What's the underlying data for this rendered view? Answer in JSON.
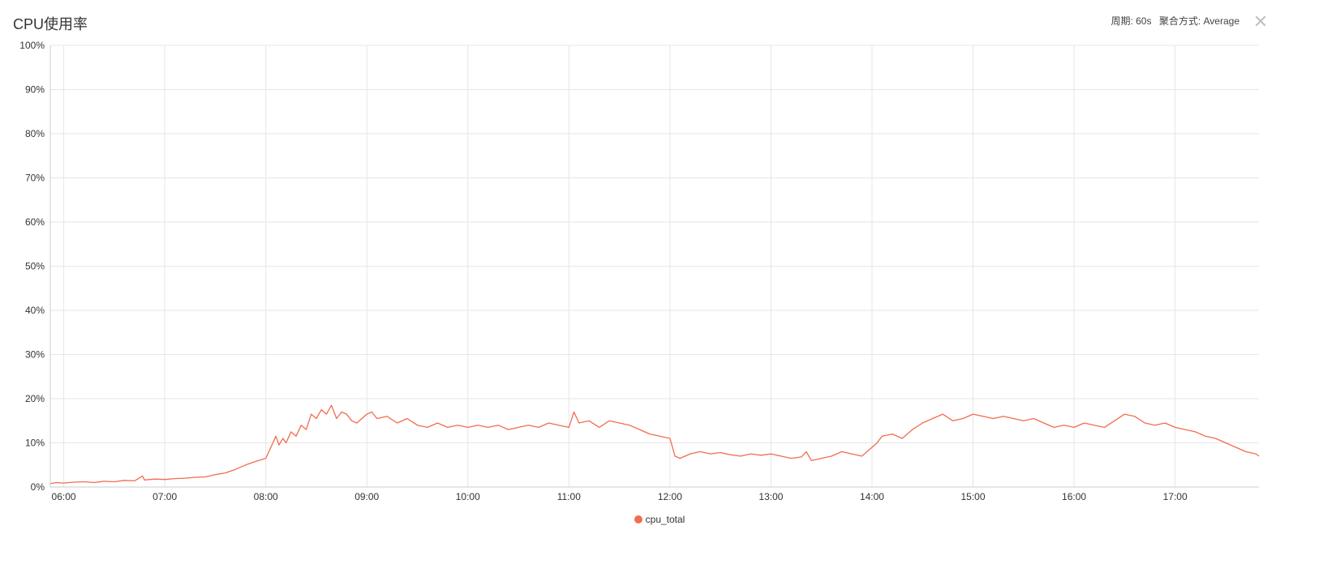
{
  "panel": {
    "title": "CPU使用率",
    "period": "周期: 60s",
    "aggregation": "聚合方式: Average"
  },
  "colors": {
    "series": "#f26c4f",
    "grid": "#e6e6e6",
    "axis": "#cccccc"
  },
  "icons": {
    "close": "close-icon"
  },
  "chart_data": {
    "type": "line",
    "title": "CPU使用率",
    "xlabel": "",
    "ylabel": "",
    "y_tick_labels": [
      "0%",
      "10%",
      "20%",
      "30%",
      "40%",
      "50%",
      "60%",
      "70%",
      "80%",
      "90%",
      "100%"
    ],
    "y_ticks": [
      0,
      10,
      20,
      30,
      40,
      50,
      60,
      70,
      80,
      90,
      100
    ],
    "x_tick_labels": [
      "06:00",
      "07:00",
      "08:00",
      "09:00",
      "10:00",
      "11:00",
      "12:00",
      "13:00",
      "14:00",
      "15:00",
      "16:00",
      "17:00"
    ],
    "x_ticks": [
      6,
      7,
      8,
      9,
      10,
      11,
      12,
      13,
      14,
      15,
      16,
      17
    ],
    "xlim": [
      5.867,
      17.83
    ],
    "ylim": [
      0,
      100
    ],
    "grid": true,
    "legend_position": "bottom-center",
    "series": [
      {
        "name": "cpu_total",
        "x": [
          5.87,
          5.93,
          6.0,
          6.1,
          6.2,
          6.3,
          6.4,
          6.5,
          6.6,
          6.7,
          6.78,
          6.8,
          6.9,
          7.0,
          7.1,
          7.2,
          7.3,
          7.4,
          7.5,
          7.6,
          7.7,
          7.8,
          7.9,
          8.0,
          8.05,
          8.1,
          8.13,
          8.17,
          8.2,
          8.25,
          8.3,
          8.35,
          8.4,
          8.45,
          8.5,
          8.55,
          8.6,
          8.65,
          8.7,
          8.75,
          8.8,
          8.85,
          8.9,
          9.0,
          9.05,
          9.1,
          9.2,
          9.3,
          9.4,
          9.5,
          9.6,
          9.7,
          9.8,
          9.9,
          10.0,
          10.1,
          10.2,
          10.3,
          10.4,
          10.5,
          10.6,
          10.7,
          10.8,
          10.9,
          11.0,
          11.05,
          11.1,
          11.2,
          11.3,
          11.4,
          11.5,
          11.6,
          11.7,
          11.75,
          11.8,
          11.9,
          12.0,
          12.05,
          12.1,
          12.2,
          12.3,
          12.4,
          12.5,
          12.6,
          12.7,
          12.8,
          12.9,
          13.0,
          13.1,
          13.2,
          13.3,
          13.35,
          13.4,
          13.5,
          13.6,
          13.7,
          13.8,
          13.9,
          14.0,
          14.05,
          14.1,
          14.2,
          14.3,
          14.4,
          14.5,
          14.6,
          14.7,
          14.8,
          14.9,
          15.0,
          15.1,
          15.2,
          15.3,
          15.4,
          15.5,
          15.6,
          15.7,
          15.8,
          15.9,
          16.0,
          16.1,
          16.2,
          16.3,
          16.4,
          16.5,
          16.6,
          16.7,
          16.8,
          16.9,
          17.0,
          17.1,
          17.2,
          17.3,
          17.4,
          17.5,
          17.6,
          17.7,
          17.8,
          17.83
        ],
        "y": [
          0.8,
          1.0,
          0.9,
          1.1,
          1.2,
          1.0,
          1.3,
          1.2,
          1.5,
          1.4,
          2.5,
          1.6,
          1.8,
          1.7,
          1.9,
          2.0,
          2.2,
          2.3,
          2.8,
          3.2,
          4.0,
          5.0,
          5.8,
          6.5,
          9.0,
          11.5,
          9.5,
          11.0,
          10.0,
          12.5,
          11.5,
          14.0,
          13.0,
          16.5,
          15.5,
          17.5,
          16.5,
          18.5,
          15.5,
          17.0,
          16.5,
          15.0,
          14.5,
          16.5,
          17.0,
          15.5,
          16.0,
          14.5,
          15.5,
          14.0,
          13.5,
          14.5,
          13.5,
          14.0,
          13.5,
          14.0,
          13.5,
          14.0,
          13.0,
          13.5,
          14.0,
          13.5,
          14.5,
          14.0,
          13.5,
          17.0,
          14.5,
          15.0,
          13.5,
          15.0,
          14.5,
          14.0,
          13.0,
          12.5,
          12.0,
          11.5,
          11.0,
          7.0,
          6.5,
          7.5,
          8.0,
          7.5,
          7.8,
          7.3,
          7.0,
          7.5,
          7.2,
          7.5,
          7.0,
          6.5,
          6.8,
          8.0,
          6.0,
          6.5,
          7.0,
          8.0,
          7.5,
          7.0,
          9.0,
          10.0,
          11.5,
          12.0,
          11.0,
          13.0,
          14.5,
          15.5,
          16.5,
          15.0,
          15.5,
          16.5,
          16.0,
          15.5,
          16.0,
          15.5,
          15.0,
          15.5,
          14.5,
          13.5,
          14.0,
          13.5,
          14.5,
          14.0,
          13.5,
          15.0,
          16.5,
          16.0,
          14.5,
          14.0,
          14.5,
          13.5,
          13.0,
          12.5,
          11.5,
          11.0,
          10.0,
          9.0,
          8.0,
          7.5,
          7.0
        ]
      }
    ]
  }
}
